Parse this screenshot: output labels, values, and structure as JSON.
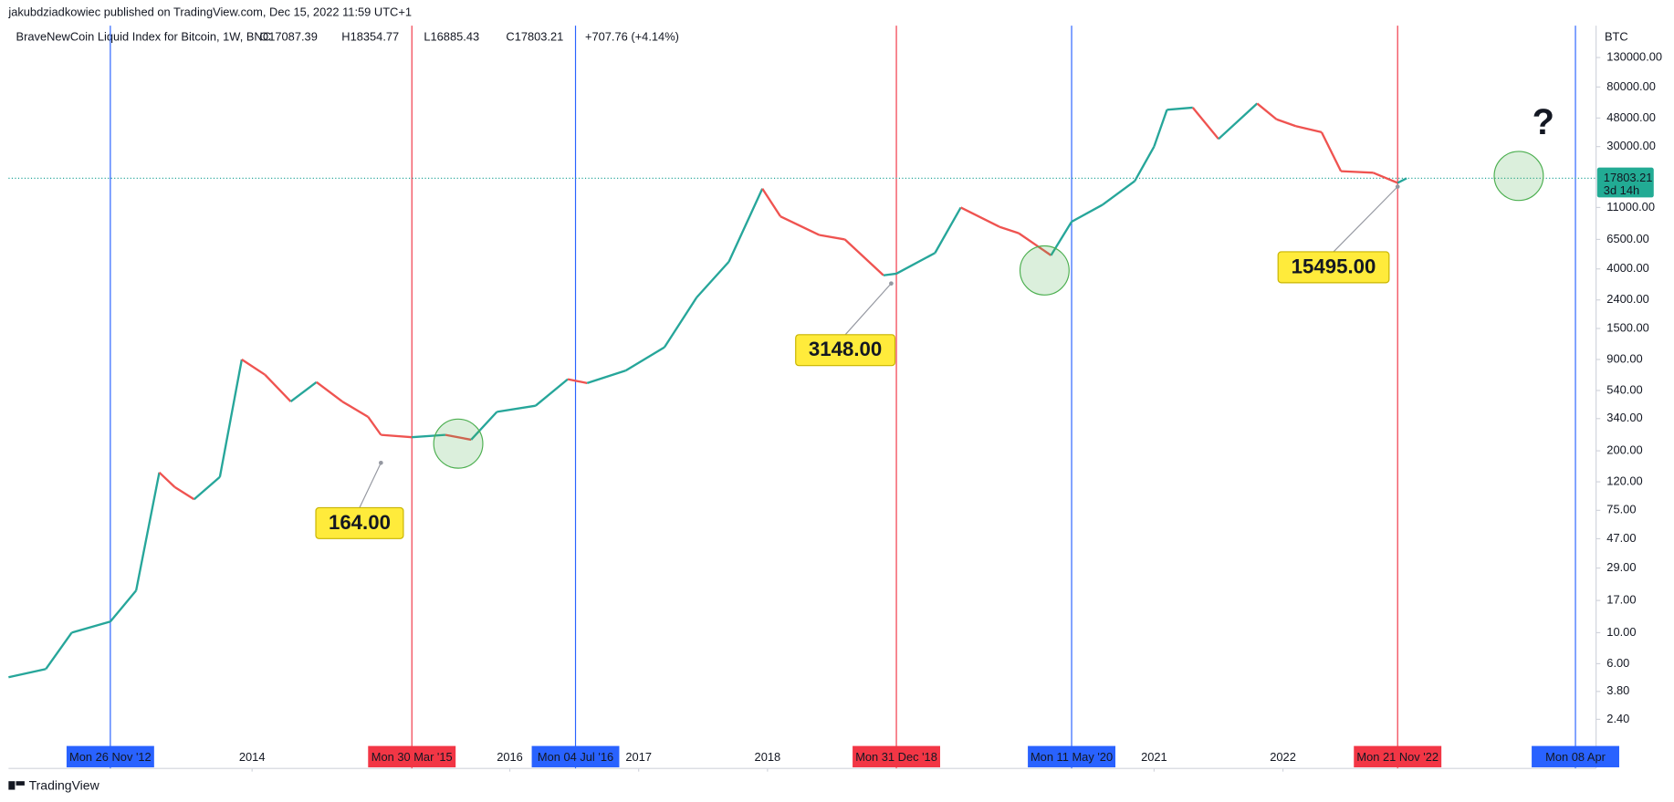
{
  "header": {
    "publisher": "jakubdziadkowiec published on TradingView.com, Dec 15, 2022 11:59 UTC+1",
    "footer": "TradingView"
  },
  "chart_data": {
    "type": "line",
    "title": "BraveNewCoin Liquid Index for Bitcoin, 1W, BNC",
    "ohlc": [
      "O17087.39",
      "H18354.77",
      "L16885.43",
      "C17803.21"
    ],
    "change": "+707.76 (+4.14%)",
    "y_unit": "BTC",
    "log_scale": true,
    "grid": false,
    "up_color": "#26a69a",
    "down_color": "#ef5350",
    "x": [
      2012.11,
      2012.4,
      2012.6,
      2012.9,
      2013.1,
      2013.28,
      2013.4,
      2013.55,
      2013.75,
      2013.92,
      2014.1,
      2014.3,
      2014.5,
      2014.7,
      2014.9,
      2015.0,
      2015.24,
      2015.5,
      2015.7,
      2015.9,
      2016.2,
      2016.45,
      2016.6,
      2016.9,
      2017.2,
      2017.45,
      2017.7,
      2017.96,
      2018.1,
      2018.4,
      2018.6,
      2018.9,
      2019.0,
      2019.3,
      2019.5,
      2019.8,
      2019.95,
      2020.2,
      2020.36,
      2020.6,
      2020.85,
      2021.0,
      2021.1,
      2021.3,
      2021.5,
      2021.8,
      2021.95,
      2022.1,
      2022.3,
      2022.45,
      2022.7,
      2022.89,
      2022.96
    ],
    "values": [
      4.8,
      5.5,
      10,
      12,
      20,
      140,
      110,
      90,
      130,
      900,
      700,
      450,
      620,
      450,
      350,
      260,
      250,
      260,
      240,
      380,
      420,
      650,
      610,
      750,
      1100,
      2500,
      4500,
      15000,
      9500,
      7000,
      6500,
      3600,
      3700,
      5200,
      11000,
      8000,
      7200,
      5000,
      8700,
      11500,
      17000,
      30000,
      55000,
      57000,
      34000,
      61000,
      47000,
      42000,
      38000,
      20000,
      19500,
      16500,
      17803.21
    ],
    "last_price": 17803.21,
    "countdown": "3d 14h",
    "xlim": [
      2012.11,
      2024.43
    ],
    "xticks": [
      2014,
      2016,
      2017,
      2018,
      2021,
      2022
    ],
    "ylim": [
      1.07,
      205000
    ],
    "yticks": [
      {
        "value": 2.4,
        "label": "2.40"
      },
      {
        "value": 3.8,
        "label": "3.80"
      },
      {
        "value": 6,
        "label": "6.00"
      },
      {
        "value": 10,
        "label": "10.00"
      },
      {
        "value": 17,
        "label": "17.00"
      },
      {
        "value": 29,
        "label": "29.00"
      },
      {
        "value": 47,
        "label": "47.00"
      },
      {
        "value": 75,
        "label": "75.00"
      },
      {
        "value": 120,
        "label": "120.00"
      },
      {
        "value": 200,
        "label": "200.00"
      },
      {
        "value": 340,
        "label": "340.00"
      },
      {
        "value": 540,
        "label": "540.00"
      },
      {
        "value": 900,
        "label": "900.00"
      },
      {
        "value": 1500,
        "label": "1500.00"
      },
      {
        "value": 2400,
        "label": "2400.00"
      },
      {
        "value": 4000,
        "label": "4000.00"
      },
      {
        "value": 6500,
        "label": "6500.00"
      },
      {
        "value": 11000,
        "label": "11000.00"
      },
      {
        "value": 30000,
        "label": "30000.00"
      },
      {
        "value": 48000,
        "label": "48000.00"
      },
      {
        "value": 80000,
        "label": "80000.00"
      },
      {
        "value": 130000,
        "label": "130000.00"
      }
    ],
    "markers": [
      {
        "label": "Mon 26 Nov '12",
        "x": 2012.9,
        "color": "#2962ff"
      },
      {
        "label": "Mon 30 Mar '15",
        "x": 2015.24,
        "color": "#f23645"
      },
      {
        "label": "Mon 04 Jul '16",
        "x": 2016.51,
        "color": "#2962ff"
      },
      {
        "label": "Mon 31 Dec '18",
        "x": 2019.0,
        "color": "#f23645"
      },
      {
        "label": "Mon 11 May '20",
        "x": 2020.36,
        "color": "#2962ff"
      },
      {
        "label": "Mon 21 Nov '22",
        "x": 2022.89,
        "color": "#f23645"
      },
      {
        "label": "Mon 08 Apr",
        "x": 2024.27,
        "color": "#2962ff"
      }
    ],
    "callouts": [
      {
        "x": 2015.0,
        "value": 164,
        "label": "164.00"
      },
      {
        "x": 2018.96,
        "value": 3148,
        "label": "3148.00"
      },
      {
        "x": 2022.89,
        "value": 15495,
        "label": "15495.00"
      }
    ],
    "highlights": [
      {
        "x": 2015.6,
        "y": 225
      },
      {
        "x": 2020.15,
        "y": 3900
      },
      {
        "x": 2023.83,
        "y": 18500
      }
    ],
    "question": "?"
  }
}
